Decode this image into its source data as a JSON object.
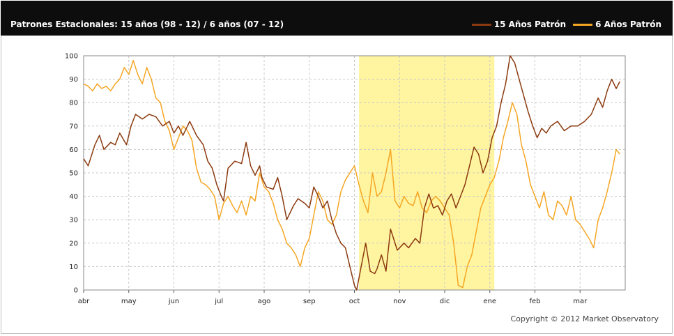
{
  "title": "Patrones Estacionales: 15 años (98 - 12) / 6 años (07 - 12)",
  "copyright": "Copyright © 2012 Market Observatory",
  "colors": {
    "series15": "#8b3a0f",
    "series6": "#f5a623",
    "highlight": "#fff4a0"
  },
  "chart_data": {
    "type": "line",
    "x_months": [
      "abr",
      "may",
      "jun",
      "jul",
      "ago",
      "sep",
      "oct",
      "nov",
      "dic",
      "ene",
      "feb",
      "mar"
    ],
    "x_range": [
      0,
      12
    ],
    "ylim": [
      0,
      100
    ],
    "y_ticks": [
      0,
      10,
      20,
      30,
      40,
      50,
      60,
      70,
      80,
      90,
      100
    ],
    "grid": true,
    "legend_position": "top-right",
    "highlight": {
      "from": 6.1,
      "to": 9.1
    },
    "series": [
      {
        "name": "15 Años Patrón",
        "color": "#8b3a0f",
        "points": [
          [
            0,
            56
          ],
          [
            0.1,
            53
          ],
          [
            0.25,
            62
          ],
          [
            0.35,
            66
          ],
          [
            0.45,
            60
          ],
          [
            0.6,
            63
          ],
          [
            0.7,
            62
          ],
          [
            0.8,
            67
          ],
          [
            0.95,
            62
          ],
          [
            1.05,
            70
          ],
          [
            1.15,
            75
          ],
          [
            1.3,
            73
          ],
          [
            1.45,
            75
          ],
          [
            1.6,
            74
          ],
          [
            1.75,
            70
          ],
          [
            1.9,
            72
          ],
          [
            2.0,
            67
          ],
          [
            2.1,
            70
          ],
          [
            2.2,
            66
          ],
          [
            2.35,
            72
          ],
          [
            2.5,
            66
          ],
          [
            2.65,
            62
          ],
          [
            2.75,
            55
          ],
          [
            2.85,
            52
          ],
          [
            2.95,
            45
          ],
          [
            3.05,
            40
          ],
          [
            3.1,
            38
          ],
          [
            3.2,
            52
          ],
          [
            3.35,
            55
          ],
          [
            3.5,
            54
          ],
          [
            3.6,
            63
          ],
          [
            3.7,
            53
          ],
          [
            3.8,
            49
          ],
          [
            3.9,
            53
          ],
          [
            3.95,
            48
          ],
          [
            4.05,
            44
          ],
          [
            4.2,
            43
          ],
          [
            4.3,
            48
          ],
          [
            4.4,
            40
          ],
          [
            4.5,
            30
          ],
          [
            4.65,
            36
          ],
          [
            4.75,
            39
          ],
          [
            4.9,
            37
          ],
          [
            5.0,
            35
          ],
          [
            5.1,
            44
          ],
          [
            5.2,
            40
          ],
          [
            5.3,
            35
          ],
          [
            5.4,
            38
          ],
          [
            5.5,
            30
          ],
          [
            5.6,
            24
          ],
          [
            5.7,
            20
          ],
          [
            5.8,
            18
          ],
          [
            5.9,
            10
          ],
          [
            6.0,
            2
          ],
          [
            6.05,
            0
          ],
          [
            6.15,
            10
          ],
          [
            6.25,
            20
          ],
          [
            6.35,
            8
          ],
          [
            6.45,
            7
          ],
          [
            6.5,
            9
          ],
          [
            6.6,
            15
          ],
          [
            6.7,
            8
          ],
          [
            6.8,
            26
          ],
          [
            6.95,
            17
          ],
          [
            7.1,
            20
          ],
          [
            7.2,
            18
          ],
          [
            7.35,
            22
          ],
          [
            7.45,
            20
          ],
          [
            7.55,
            35
          ],
          [
            7.65,
            41
          ],
          [
            7.75,
            35
          ],
          [
            7.85,
            36
          ],
          [
            7.95,
            32
          ],
          [
            8.05,
            38
          ],
          [
            8.15,
            41
          ],
          [
            8.25,
            35
          ],
          [
            8.35,
            40
          ],
          [
            8.45,
            45
          ],
          [
            8.55,
            53
          ],
          [
            8.65,
            61
          ],
          [
            8.75,
            58
          ],
          [
            8.85,
            50
          ],
          [
            8.95,
            55
          ],
          [
            9.05,
            65
          ],
          [
            9.15,
            70
          ],
          [
            9.25,
            80
          ],
          [
            9.35,
            88
          ],
          [
            9.45,
            100
          ],
          [
            9.55,
            97
          ],
          [
            9.65,
            90
          ],
          [
            9.75,
            83
          ],
          [
            9.85,
            76
          ],
          [
            9.95,
            70
          ],
          [
            10.05,
            65
          ],
          [
            10.15,
            69
          ],
          [
            10.25,
            67
          ],
          [
            10.35,
            70
          ],
          [
            10.5,
            72
          ],
          [
            10.65,
            68
          ],
          [
            10.8,
            70
          ],
          [
            10.95,
            70
          ],
          [
            11.1,
            72
          ],
          [
            11.25,
            75
          ],
          [
            11.4,
            82
          ],
          [
            11.5,
            78
          ],
          [
            11.6,
            85
          ],
          [
            11.7,
            90
          ],
          [
            11.8,
            86
          ],
          [
            11.88,
            89
          ]
        ]
      },
      {
        "name": "6 Años Patrón",
        "color": "#f5a623",
        "points": [
          [
            0,
            88
          ],
          [
            0.1,
            87
          ],
          [
            0.2,
            85
          ],
          [
            0.3,
            88
          ],
          [
            0.4,
            86
          ],
          [
            0.5,
            87
          ],
          [
            0.6,
            85
          ],
          [
            0.7,
            88
          ],
          [
            0.8,
            90
          ],
          [
            0.9,
            95
          ],
          [
            1.0,
            92
          ],
          [
            1.1,
            98
          ],
          [
            1.2,
            92
          ],
          [
            1.3,
            88
          ],
          [
            1.4,
            95
          ],
          [
            1.5,
            90
          ],
          [
            1.6,
            82
          ],
          [
            1.7,
            80
          ],
          [
            1.8,
            72
          ],
          [
            1.9,
            68
          ],
          [
            2.0,
            60
          ],
          [
            2.1,
            65
          ],
          [
            2.2,
            70
          ],
          [
            2.3,
            68
          ],
          [
            2.4,
            64
          ],
          [
            2.5,
            52
          ],
          [
            2.6,
            46
          ],
          [
            2.7,
            45
          ],
          [
            2.8,
            43
          ],
          [
            2.9,
            40
          ],
          [
            3.0,
            30
          ],
          [
            3.1,
            37
          ],
          [
            3.2,
            40
          ],
          [
            3.3,
            36
          ],
          [
            3.4,
            33
          ],
          [
            3.5,
            38
          ],
          [
            3.6,
            32
          ],
          [
            3.7,
            40
          ],
          [
            3.8,
            38
          ],
          [
            3.9,
            50
          ],
          [
            4.0,
            44
          ],
          [
            4.1,
            42
          ],
          [
            4.2,
            37
          ],
          [
            4.3,
            30
          ],
          [
            4.4,
            26
          ],
          [
            4.5,
            20
          ],
          [
            4.6,
            18
          ],
          [
            4.7,
            15
          ],
          [
            4.8,
            10
          ],
          [
            4.9,
            18
          ],
          [
            5.0,
            22
          ],
          [
            5.1,
            32
          ],
          [
            5.2,
            42
          ],
          [
            5.3,
            38
          ],
          [
            5.4,
            30
          ],
          [
            5.5,
            28
          ],
          [
            5.6,
            32
          ],
          [
            5.7,
            42
          ],
          [
            5.8,
            47
          ],
          [
            5.9,
            50
          ],
          [
            6.0,
            53
          ],
          [
            6.1,
            45
          ],
          [
            6.2,
            38
          ],
          [
            6.3,
            33
          ],
          [
            6.4,
            50
          ],
          [
            6.5,
            40
          ],
          [
            6.6,
            42
          ],
          [
            6.7,
            50
          ],
          [
            6.8,
            60
          ],
          [
            6.9,
            38
          ],
          [
            7.0,
            35
          ],
          [
            7.1,
            40
          ],
          [
            7.2,
            37
          ],
          [
            7.3,
            36
          ],
          [
            7.4,
            42
          ],
          [
            7.5,
            35
          ],
          [
            7.6,
            33
          ],
          [
            7.7,
            38
          ],
          [
            7.8,
            40
          ],
          [
            7.9,
            38
          ],
          [
            8.0,
            35
          ],
          [
            8.1,
            32
          ],
          [
            8.2,
            20
          ],
          [
            8.3,
            2
          ],
          [
            8.4,
            1
          ],
          [
            8.5,
            10
          ],
          [
            8.6,
            15
          ],
          [
            8.7,
            25
          ],
          [
            8.8,
            35
          ],
          [
            8.9,
            40
          ],
          [
            9.0,
            45
          ],
          [
            9.1,
            48
          ],
          [
            9.2,
            55
          ],
          [
            9.3,
            65
          ],
          [
            9.4,
            72
          ],
          [
            9.5,
            80
          ],
          [
            9.6,
            75
          ],
          [
            9.7,
            62
          ],
          [
            9.8,
            55
          ],
          [
            9.9,
            45
          ],
          [
            10.0,
            40
          ],
          [
            10.1,
            35
          ],
          [
            10.2,
            42
          ],
          [
            10.3,
            32
          ],
          [
            10.4,
            30
          ],
          [
            10.5,
            38
          ],
          [
            10.6,
            36
          ],
          [
            10.7,
            32
          ],
          [
            10.8,
            40
          ],
          [
            10.9,
            30
          ],
          [
            11.0,
            28
          ],
          [
            11.1,
            25
          ],
          [
            11.2,
            22
          ],
          [
            11.3,
            18
          ],
          [
            11.4,
            30
          ],
          [
            11.5,
            35
          ],
          [
            11.6,
            42
          ],
          [
            11.7,
            50
          ],
          [
            11.8,
            60
          ],
          [
            11.88,
            58
          ]
        ]
      }
    ]
  }
}
